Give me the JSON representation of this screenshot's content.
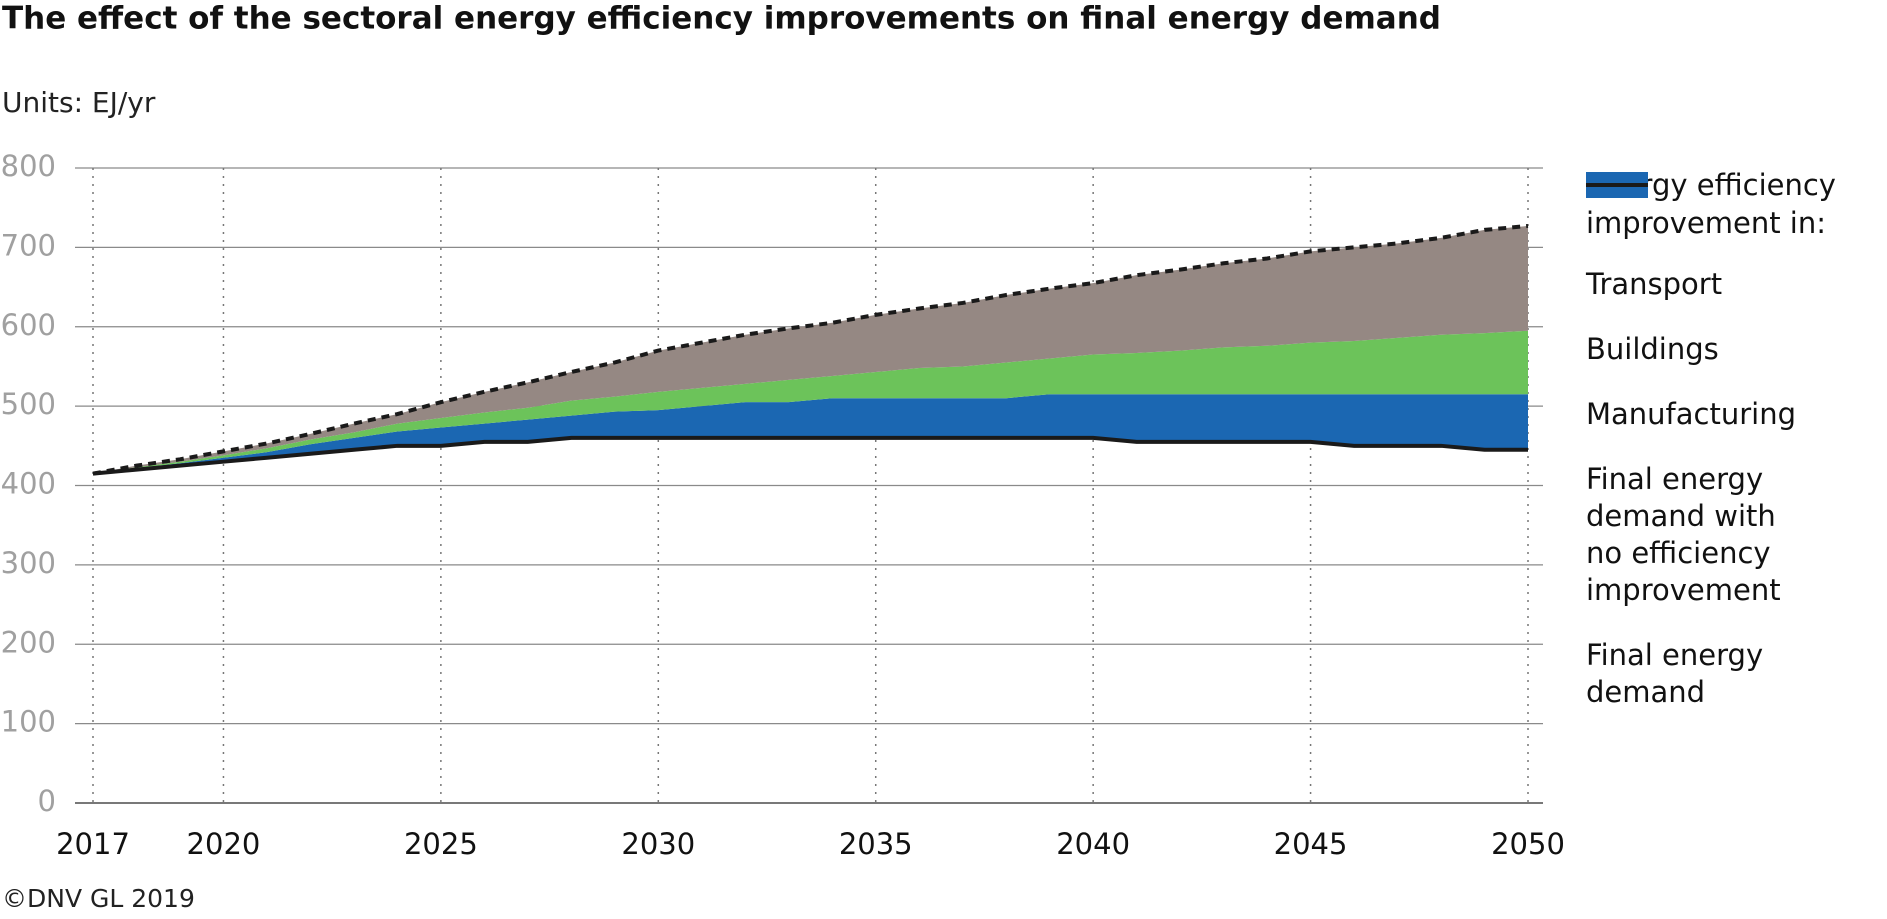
{
  "chart_data": {
    "type": "stacked_area",
    "title": "The effect of the sectoral energy efficiency improvements on final energy demand",
    "subtitle": "Units: EJ/yr",
    "source": "©DNV GL 2019",
    "legend_title": "Energy efficiency improvement in:",
    "legend_position": "right",
    "x": [
      2017,
      2018,
      2019,
      2020,
      2021,
      2022,
      2023,
      2024,
      2025,
      2026,
      2027,
      2028,
      2029,
      2030,
      2031,
      2032,
      2033,
      2034,
      2035,
      2036,
      2037,
      2038,
      2039,
      2040,
      2041,
      2042,
      2043,
      2044,
      2045,
      2046,
      2047,
      2048,
      2049,
      2050
    ],
    "xlim": [
      2017,
      2050
    ],
    "xticks": [
      2017,
      2020,
      2025,
      2030,
      2035,
      2040,
      2045,
      2050
    ],
    "ylim": [
      0,
      800
    ],
    "yticks": [
      0,
      100,
      200,
      300,
      400,
      500,
      600,
      700,
      800
    ],
    "grid": true,
    "series": [
      {
        "name": "Transport",
        "kind": "area",
        "color": "#958883",
        "values": [
          0,
          2,
          3,
          5,
          6,
          7,
          11,
          12,
          20,
          26,
          32,
          36,
          43,
          52,
          57,
          62,
          65,
          67,
          72,
          75,
          80,
          85,
          88,
          90,
          98,
          102,
          106,
          110,
          115,
          118,
          119,
          122,
          130,
          132
        ]
      },
      {
        "name": "Buildings",
        "kind": "area",
        "color": "#6cc35a",
        "values": [
          0,
          1,
          2,
          3,
          5,
          6,
          7,
          10,
          12,
          14,
          15,
          19,
          19,
          23,
          23,
          23,
          28,
          28,
          33,
          38,
          40,
          45,
          45,
          50,
          52,
          55,
          59,
          61,
          65,
          67,
          71,
          75,
          77,
          80
        ]
      },
      {
        "name": "Manufacturing",
        "kind": "area",
        "color": "#1b67b2",
        "values": [
          0,
          2,
          3,
          5,
          7,
          12,
          15,
          18,
          23,
          23,
          28,
          28,
          33,
          35,
          40,
          45,
          45,
          50,
          50,
          50,
          50,
          50,
          55,
          55,
          60,
          60,
          60,
          60,
          60,
          65,
          65,
          65,
          70,
          70
        ]
      },
      {
        "name": "Final energy demand with no efficiency improvement",
        "kind": "line",
        "dashed": true,
        "color": "#1a1a1a",
        "values": [
          415,
          425,
          433,
          443,
          453,
          465,
          478,
          490,
          505,
          518,
          530,
          543,
          555,
          570,
          580,
          590,
          598,
          605,
          615,
          623,
          630,
          640,
          648,
          655,
          665,
          672,
          680,
          686,
          695,
          700,
          705,
          712,
          722,
          727
        ]
      },
      {
        "name": "Final energy demand",
        "kind": "line",
        "dashed": false,
        "base": true,
        "color": "#1a1a1a",
        "values": [
          415,
          420,
          425,
          430,
          435,
          440,
          445,
          450,
          450,
          455,
          455,
          460,
          460,
          460,
          460,
          460,
          460,
          460,
          460,
          460,
          460,
          460,
          460,
          460,
          455,
          455,
          455,
          455,
          455,
          450,
          450,
          450,
          445,
          445
        ]
      }
    ]
  }
}
